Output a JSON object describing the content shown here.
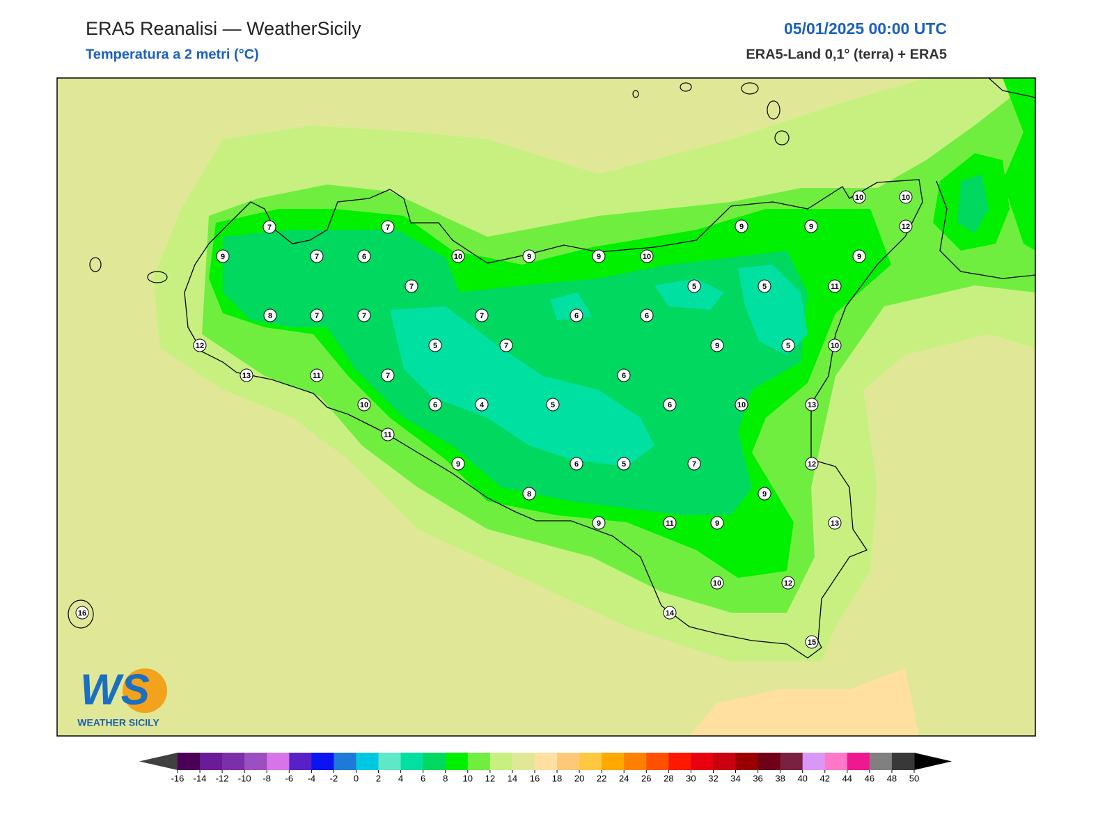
{
  "header": {
    "title": "ERA5 Reanalisi — WeatherSicily",
    "subtitle": "Temperatura a 2 metri (°C)",
    "datetime": "05/01/2025 00:00 UTC",
    "source": "ERA5-Land 0,1° (terra) + ERA5"
  },
  "stations": [
    7,
    7,
    9,
    7,
    6,
    10,
    9,
    9,
    10,
    9,
    9,
    10,
    10,
    12,
    9,
    7,
    5,
    5,
    11,
    8,
    7,
    7,
    7,
    6,
    6,
    12,
    5,
    7,
    9,
    5,
    10,
    13,
    11,
    7,
    6,
    10,
    6,
    4,
    5,
    6,
    10,
    13,
    11,
    9,
    6,
    5,
    7,
    12,
    8,
    9,
    9,
    11,
    9,
    13,
    10,
    12,
    14,
    16,
    15
  ],
  "colorbar": {
    "ticks": [
      -16,
      -14,
      -12,
      -10,
      -8,
      -6,
      -4,
      -2,
      0,
      2,
      4,
      6,
      8,
      10,
      12,
      14,
      16,
      18,
      20,
      22,
      24,
      26,
      28,
      30,
      32,
      34,
      36,
      38,
      40,
      42,
      44,
      46,
      48,
      50
    ],
    "colors": [
      "#4b0055",
      "#6a1b9a",
      "#7b2fa8",
      "#9c4fc0",
      "#d674e8",
      "#5a20c8",
      "#0a14f0",
      "#1e7ad8",
      "#00c8e0",
      "#5ee8c8",
      "#00e0a0",
      "#00d860",
      "#00f000",
      "#70ee40",
      "#c8f080",
      "#e0e898",
      "#ffe0a0",
      "#ffc878",
      "#ffc840",
      "#ffa800",
      "#ff8000",
      "#ff5000",
      "#ff1800",
      "#e80010",
      "#c80010",
      "#9a0000",
      "#700018",
      "#7a2040",
      "#d898f8",
      "#ff78c8",
      "#f01890",
      "#808080",
      "#383838"
    ],
    "under_color": "#404040",
    "over_color": "#000000"
  },
  "logo": {
    "initials": "WS",
    "name": "WEATHER SICILY"
  }
}
